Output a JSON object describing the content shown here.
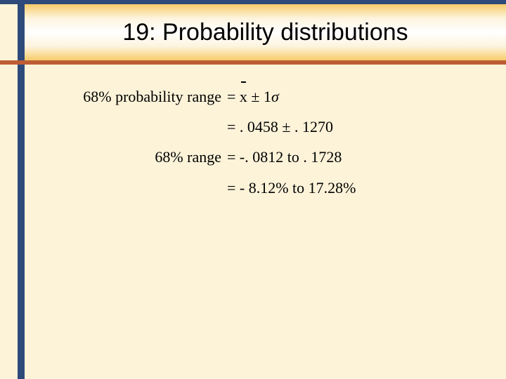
{
  "slide": {
    "title": "19: Probability distributions",
    "line1": {
      "left": "68% probability range",
      "right": "= <span class=\"xbar\">x</span> ± 1<i>σ</i>"
    },
    "line2": {
      "left": "",
      "right": "= . 0458 ± . 1270"
    },
    "line3": {
      "left": "68% range",
      "right": "= -. 0812 to . 1728"
    },
    "line4": {
      "left": "",
      "right": "= - 8.12% to 17.28%"
    }
  },
  "colors": {
    "background": "#fcf3d9",
    "navy": "#2e4a7a",
    "underline": "#be5d34",
    "gradient_edge": "#f7cc6a",
    "gradient_mid": "#ffffff"
  }
}
